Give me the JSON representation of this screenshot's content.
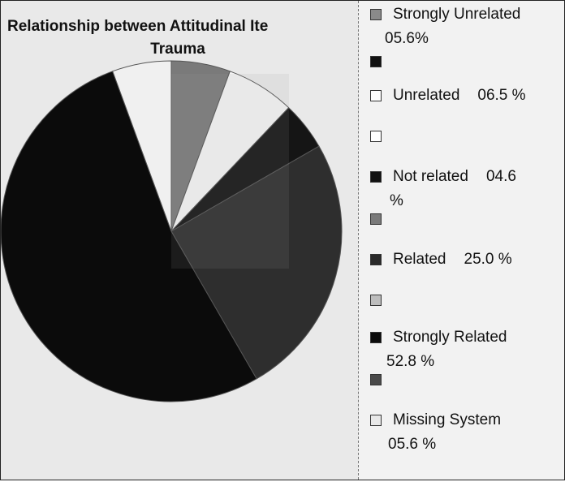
{
  "chart_data": {
    "type": "pie",
    "title": "Relationship between Attitudinal Ite Trauma",
    "title_lines": [
      "Relationship between Attitudinal Ite",
      "Trauma"
    ],
    "slices": [
      {
        "label": "Strongly Unrelated",
        "value": 5.6,
        "color": "#7a7a7a"
      },
      {
        "label": "Unrelated",
        "value": 6.5,
        "color": "#f4f4f4"
      },
      {
        "label": "Not related",
        "value": 4.6,
        "color": "#151515"
      },
      {
        "label": "Related",
        "value": 25.0,
        "color": "#2e2e2e"
      },
      {
        "label": "Strongly Related",
        "value": 52.8,
        "color": "#0b0b0b"
      },
      {
        "label": "Missing System",
        "value": 5.6,
        "color": "#f0f0f0"
      }
    ]
  },
  "legend": {
    "entries": [
      {
        "text": "Strongly Unrelated",
        "text2": "05.6%"
      },
      {
        "text": "Unrelated",
        "text2": "06.5 %"
      },
      {
        "text": "Not related",
        "text2": "04.6",
        "text3": "%"
      },
      {
        "text": "Related",
        "text2": "25.0 %"
      },
      {
        "text": "Strongly Related",
        "text2": "52.8 %"
      },
      {
        "text": "Missing System",
        "text2": "05.6 %"
      }
    ]
  },
  "colors": {
    "legend_swatches": [
      "#8a8a8a",
      "#111111",
      "#ffffff",
      "#ffffff",
      "#111111",
      "#7a7a7a",
      "#2a2a2a",
      "#bdbdbd",
      "#0b0b0b",
      "#4a4a4a",
      "#e8e8e8"
    ]
  }
}
